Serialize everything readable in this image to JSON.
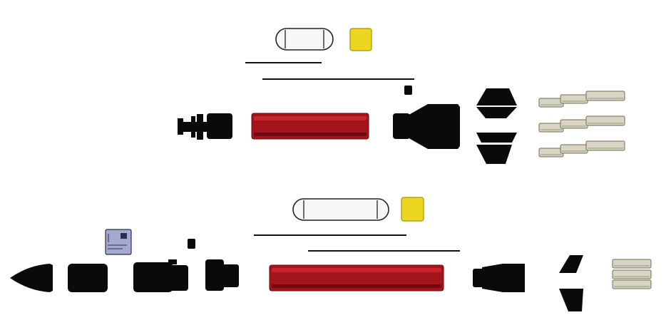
{
  "colors": {
    "background": "#ffffff",
    "part_black": "#0a0a0a",
    "part_black_edge": "#2a2a2a",
    "tube_red": "#a4141b",
    "tube_red_light": "#c8262d",
    "tube_red_dark": "#6e0a0f",
    "capsule_fill": "#f7f7f7",
    "capsule_edge": "#222222",
    "block_yellow": "#ecd622",
    "block_yellow_edge": "#a89400",
    "rod_fill": "#d8d6c2",
    "rod_edge": "#6e6c5a",
    "rod_shade": "#b9b6a0",
    "electronics_fill": "#a3a9cf",
    "electronics_edge": "#2c2f48",
    "line": "#111111"
  },
  "assemblies": [
    {
      "name": "upper-assembly",
      "parts": [
        "capsule",
        "yellow-block",
        "thin-rod-short",
        "thin-rod-long",
        "small-square",
        "tail-connector",
        "red-tube",
        "motor-mount",
        "fin-pair-stacked",
        "guide-rods"
      ]
    },
    {
      "name": "lower-assembly",
      "parts": [
        "capsule",
        "yellow-block",
        "thin-rod-short",
        "thin-rod-long",
        "electronics-board",
        "small-square",
        "nose-cone",
        "coupler-section",
        "intake-section",
        "adapter-section",
        "red-tube",
        "motor-mount",
        "fin-pair-split",
        "guide-rods"
      ]
    }
  ]
}
